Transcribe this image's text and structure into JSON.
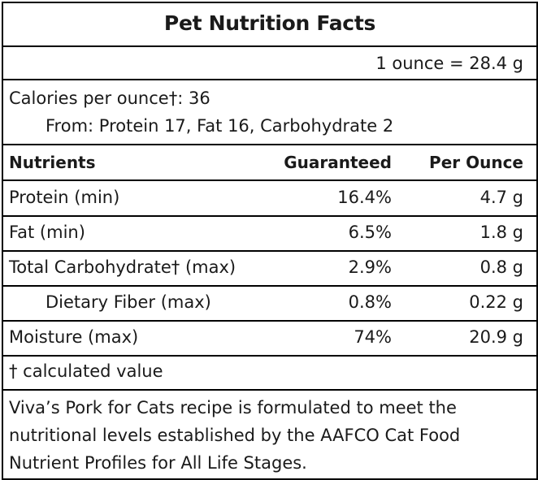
{
  "title": "Pet Nutrition Facts",
  "serving": "1 ounce = 28.4 g",
  "calories_line": "Calories per ounce†: 36",
  "from_line": "From: Protein 17, Fat 16, Carbohydrate 2",
  "table": {
    "headers": {
      "nutrients": "Nutrients",
      "guaranteed": "Guaranteed",
      "per_ounce": "Per Ounce"
    },
    "rows": [
      {
        "name": "Protein (min)",
        "guaranteed": "16.4%",
        "per_ounce": "4.7 g"
      },
      {
        "name": "Fat (min)",
        "guaranteed": "6.5%",
        "per_ounce": "1.8 g"
      },
      {
        "name": "Total Carbohydrate† (max)",
        "guaranteed": "2.9%",
        "per_ounce": "0.8 g"
      },
      {
        "name": "Dietary Fiber (max)",
        "guaranteed": "0.8%",
        "per_ounce": "0.22 g"
      },
      {
        "name": "Moisture (max)",
        "guaranteed": "74%",
        "per_ounce": "20.9 g"
      }
    ]
  },
  "footnote": "† calculated value",
  "statement": "Viva’s Pork for Cats recipe is formulated to meet the nutritional levels established by the AAFCO Cat Food Nutrient Profiles for All Life Stages."
}
